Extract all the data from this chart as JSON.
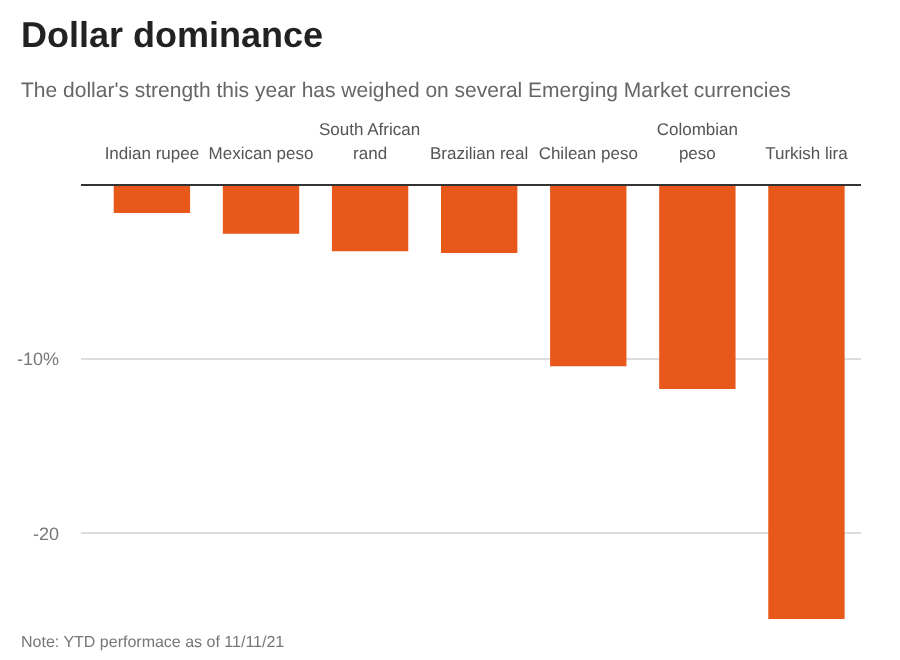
{
  "chart_data": {
    "type": "bar",
    "title": "Dollar dominance",
    "subtitle": "The dollar's strength this year has weighed on several Emerging Market currencies",
    "categories": [
      "Indian rupee",
      "Mexican peso",
      "South African\nrand",
      "Brazilian real",
      "Chilean peso",
      "Colombian\npeso",
      "Turkish lira"
    ],
    "values": [
      -1.6,
      -2.8,
      -3.8,
      -3.9,
      -10.4,
      -11.7,
      -24.9
    ],
    "color": "#e8581a",
    "ylim": [
      -24.9,
      0
    ],
    "yticks": [
      {
        "value": -10,
        "label": "-10%"
      },
      {
        "value": -20,
        "label": "-20"
      }
    ],
    "grid": "y",
    "annotations": [
      "Note: YTD performace as of 11/11/21"
    ]
  }
}
